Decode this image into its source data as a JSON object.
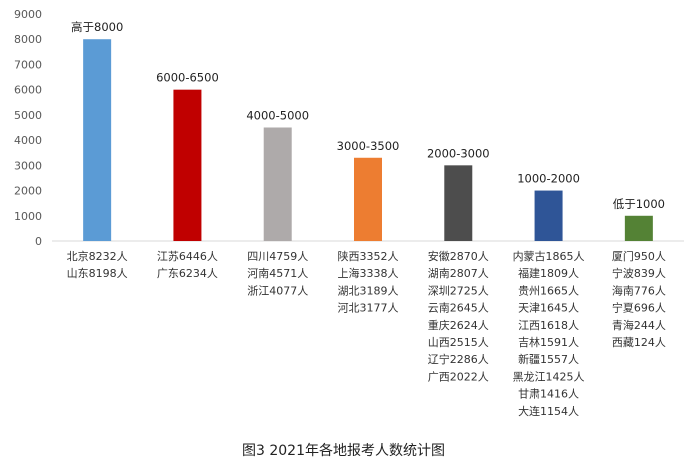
{
  "caption": "图3   2021年各地报考人数统计图",
  "chart_data": {
    "type": "bar",
    "ylim": [
      0,
      9000
    ],
    "yticks": [
      0,
      1000,
      2000,
      3000,
      4000,
      5000,
      6000,
      7000,
      8000,
      9000
    ],
    "grid": false,
    "categories": [
      {
        "range_label": "高于8000",
        "value": 8000,
        "color": "#5B9BD5",
        "regions": [
          "北京8232人",
          "山东8198人"
        ]
      },
      {
        "range_label": "6000-6500",
        "value": 6000,
        "color": "#C00000",
        "regions": [
          "江苏6446人",
          "广东6234人"
        ]
      },
      {
        "range_label": "4000-5000",
        "value": 4500,
        "color": "#AEAAAA",
        "regions": [
          "四川4759人",
          "河南4571人",
          "浙江4077人"
        ]
      },
      {
        "range_label": "3000-3500",
        "value": 3300,
        "color": "#ED7D31",
        "regions": [
          "陕西3352人",
          "上海3338人",
          "湖北3189人",
          "河北3177人"
        ]
      },
      {
        "range_label": "2000-3000",
        "value": 3000,
        "color": "#4D4D4D",
        "regions": [
          "安徽2870人",
          "湖南2807人",
          "深圳2725人",
          "云南2645人",
          "重庆2624人",
          "山西2515人",
          "辽宁2286人",
          "广西2022人"
        ]
      },
      {
        "range_label": "1000-2000",
        "value": 2000,
        "color": "#2F5597",
        "regions": [
          "内蒙古1865人",
          "福建1809人",
          "贵州1665人",
          "天津1645人",
          "江西1618人",
          "吉林1591人",
          "新疆1557人",
          "黑龙江1425人",
          "甘肃1416人",
          "大连1154人"
        ]
      },
      {
        "range_label": "低于1000",
        "value": 1000,
        "color": "#548235",
        "regions": [
          "厦门950人",
          "宁波839人",
          "海南776人",
          "宁夏696人",
          "青海244人",
          "西藏124人"
        ]
      }
    ]
  }
}
